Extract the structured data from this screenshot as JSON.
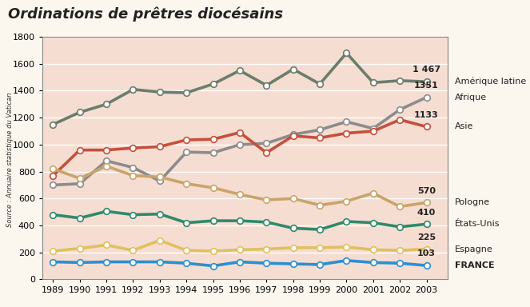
{
  "chart_data": {
    "type": "line",
    "title": "Ordinations de prêtres diocésains",
    "source": "Source : Annuaire statistique du Vatican",
    "x": [
      1989,
      1990,
      1991,
      1992,
      1993,
      1994,
      1995,
      1996,
      1997,
      1998,
      1999,
      2000,
      2001,
      2002,
      2003
    ],
    "xlim": [
      1988.6,
      2003.8
    ],
    "xticks": [
      1989,
      1990,
      1991,
      1992,
      1993,
      1994,
      1995,
      1996,
      1997,
      1998,
      1999,
      2000,
      2001,
      2002,
      2003
    ],
    "ylim": [
      0,
      1800
    ],
    "yticks": [
      0,
      200,
      400,
      600,
      800,
      1000,
      1200,
      1400,
      1600,
      1800
    ],
    "grid": true,
    "marker": "circle",
    "data_labels": true,
    "series": [
      {
        "name": "Amérique latine",
        "color": "#6b7d6b",
        "values": [
          1150,
          1240,
          1300,
          1410,
          1390,
          1385,
          1450,
          1550,
          1440,
          1560,
          1450,
          1680,
          1460,
          1475,
          1467
        ],
        "value_labels": [
          null,
          null,
          null,
          null,
          null,
          null,
          null,
          null,
          null,
          null,
          null,
          null,
          null,
          null,
          "1 467"
        ]
      },
      {
        "name": "Afrique",
        "color": "#8c8c8c",
        "values": [
          700,
          710,
          880,
          830,
          730,
          945,
          940,
          1000,
          1010,
          1075,
          1110,
          1170,
          1120,
          1260,
          1351
        ],
        "value_labels": [
          null,
          null,
          null,
          null,
          null,
          null,
          null,
          null,
          null,
          null,
          null,
          null,
          null,
          null,
          "1351"
        ]
      },
      {
        "name": "Asie",
        "color": "#c4503c",
        "values": [
          770,
          960,
          960,
          975,
          985,
          1035,
          1040,
          1090,
          940,
          1065,
          1050,
          1085,
          1100,
          1185,
          1133
        ],
        "value_labels": [
          null,
          null,
          null,
          null,
          null,
          null,
          null,
          null,
          null,
          null,
          null,
          null,
          null,
          null,
          "1133"
        ]
      },
      {
        "name": "Pologne",
        "color": "#c9a46a",
        "values": [
          820,
          750,
          840,
          770,
          760,
          710,
          680,
          630,
          590,
          600,
          550,
          580,
          640,
          540,
          570
        ],
        "value_labels": [
          null,
          null,
          null,
          null,
          null,
          null,
          null,
          null,
          null,
          null,
          null,
          null,
          null,
          null,
          "570"
        ]
      },
      {
        "name": "États-Unis",
        "color": "#2f8a6a",
        "values": [
          480,
          455,
          505,
          480,
          485,
          420,
          435,
          435,
          425,
          380,
          370,
          430,
          420,
          390,
          410
        ],
        "value_labels": [
          null,
          null,
          null,
          null,
          null,
          null,
          null,
          null,
          null,
          null,
          null,
          null,
          null,
          null,
          "410"
        ]
      },
      {
        "name": "Espagne",
        "color": "#e0c060",
        "values": [
          210,
          230,
          255,
          215,
          290,
          215,
          210,
          220,
          225,
          235,
          235,
          240,
          220,
          215,
          225
        ],
        "value_labels": [
          null,
          null,
          null,
          null,
          null,
          null,
          null,
          null,
          null,
          null,
          null,
          null,
          null,
          null,
          "225"
        ]
      },
      {
        "name": "FRANCE",
        "color": "#2b8fd0",
        "values": [
          130,
          125,
          130,
          130,
          130,
          120,
          100,
          130,
          120,
          115,
          110,
          140,
          125,
          120,
          103
        ],
        "value_labels": [
          null,
          null,
          null,
          null,
          null,
          null,
          null,
          null,
          null,
          null,
          null,
          null,
          null,
          null,
          "103"
        ]
      }
    ]
  }
}
